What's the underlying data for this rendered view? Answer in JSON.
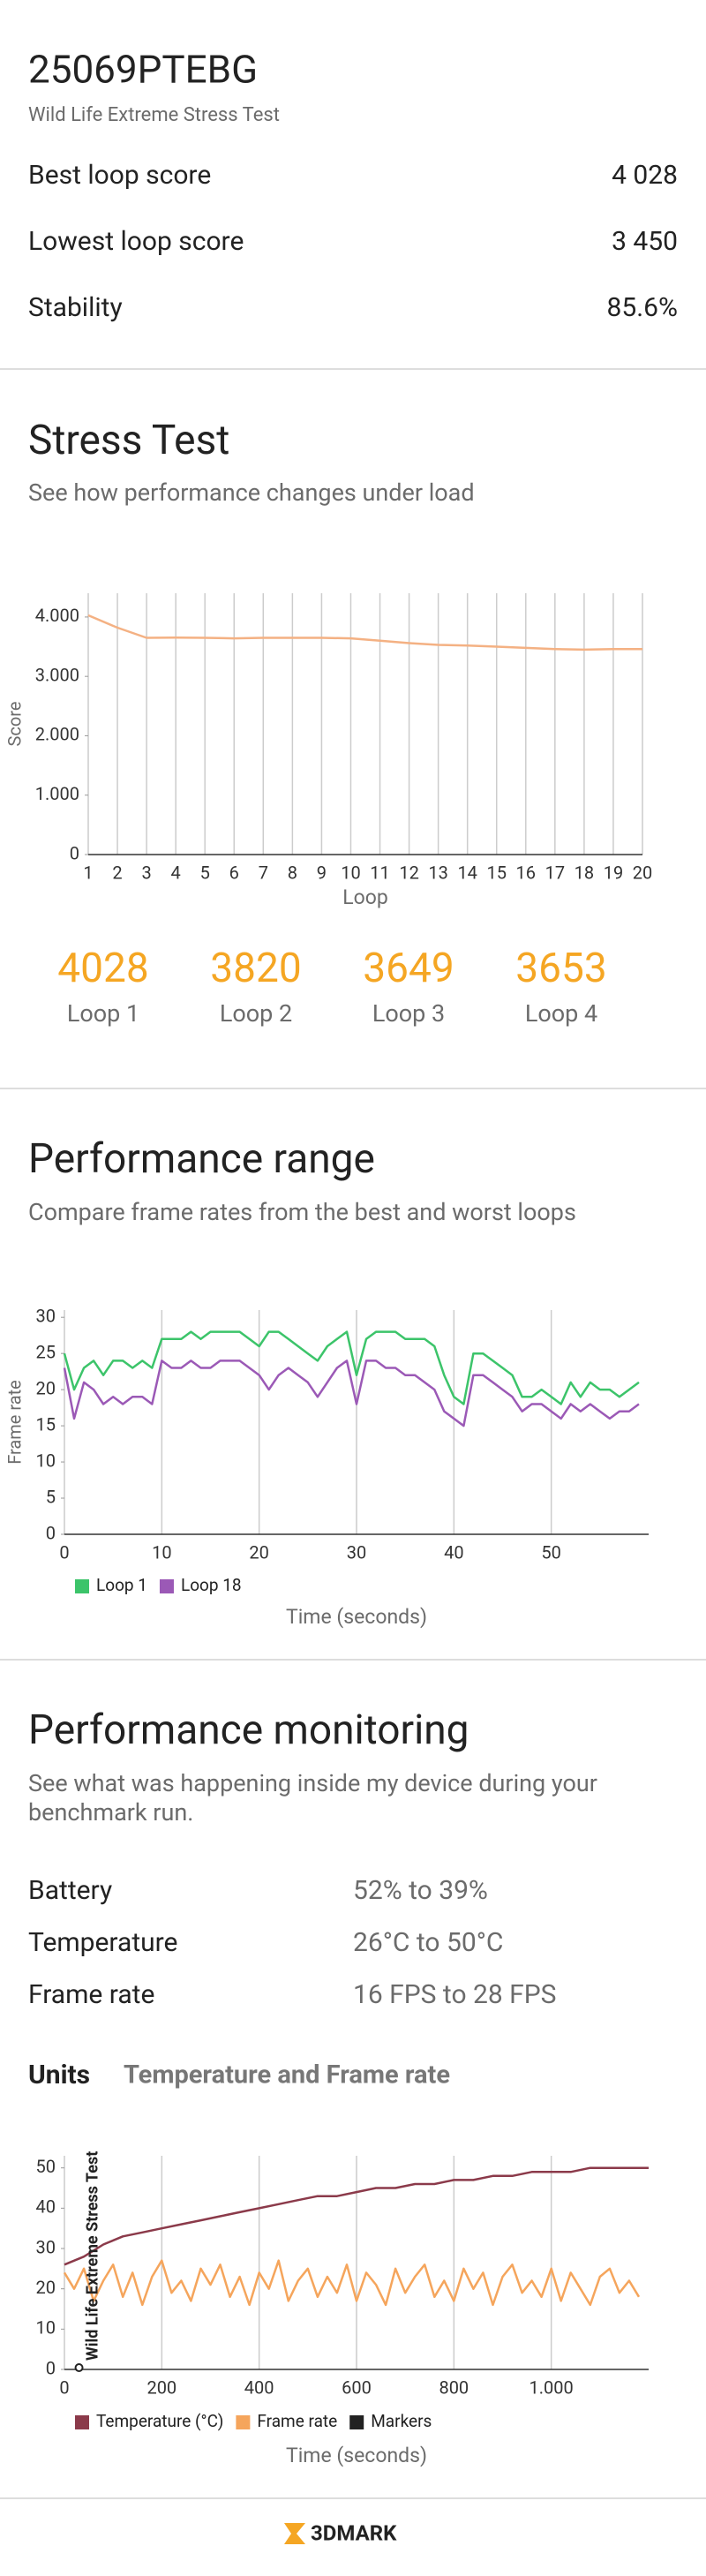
{
  "header": {
    "device": "25069PTEBG",
    "test": "Wild Life Extreme Stress Test",
    "rows": [
      {
        "label": "Best loop score",
        "value": "4 028"
      },
      {
        "label": "Lowest loop score",
        "value": "3 450"
      },
      {
        "label": "Stability",
        "value": "85.6%"
      }
    ]
  },
  "stress_test": {
    "title": "Stress Test",
    "subtitle": "See how performance changes under load",
    "loops": [
      {
        "score": 4028,
        "label": "Loop 1"
      },
      {
        "score": 3820,
        "label": "Loop 2"
      },
      {
        "score": 3649,
        "label": "Loop 3"
      },
      {
        "score": 3653,
        "label": "Loop 4"
      }
    ]
  },
  "performance_range": {
    "title": "Performance range",
    "subtitle": "Compare frame rates from the best and worst loops"
  },
  "performance_monitoring": {
    "title": "Performance monitoring",
    "subtitle": [
      "See what was happening inside my device during your",
      "benchmark run."
    ],
    "rows": [
      {
        "label": "Battery",
        "value": "52% to 39%"
      },
      {
        "label": "Temperature",
        "value": "26°C to 50°C"
      },
      {
        "label": "Frame rate",
        "value": "16 FPS to 28 FPS"
      }
    ],
    "units_label": "Units",
    "units_value": "Temperature and Frame rate"
  },
  "footer": {
    "logo": "3DMARK"
  },
  "chart_data": [
    {
      "type": "line",
      "x": [
        1,
        2,
        3,
        4,
        5,
        6,
        7,
        8,
        9,
        10,
        11,
        12,
        13,
        14,
        15,
        16,
        17,
        18,
        19,
        20
      ],
      "values": [
        4028,
        3820,
        3649,
        3653,
        3650,
        3640,
        3650,
        3650,
        3650,
        3640,
        3600,
        3560,
        3530,
        3520,
        3500,
        3480,
        3460,
        3450,
        3460,
        3460
      ],
      "color": "#f4b183",
      "xlim": [
        1,
        20
      ],
      "xticks": [
        1,
        2,
        3,
        4,
        5,
        6,
        7,
        8,
        9,
        10,
        11,
        12,
        13,
        14,
        15,
        16,
        17,
        18,
        19,
        20
      ],
      "ylim": [
        0,
        4400
      ],
      "yticks": [
        0,
        {
          "value": 1000,
          "label": "1.000"
        },
        {
          "value": 2000,
          "label": "2.000"
        },
        {
          "value": 3000,
          "label": "3.000"
        },
        {
          "value": 4000,
          "label": "4.000"
        }
      ],
      "xlabel": "Loop",
      "ylabel": "Score",
      "grid": "x"
    },
    {
      "type": "line",
      "x": [
        0,
        1,
        2,
        3,
        4,
        5,
        6,
        7,
        8,
        9,
        10,
        11,
        12,
        13,
        14,
        15,
        16,
        17,
        18,
        19,
        20,
        21,
        22,
        23,
        24,
        25,
        26,
        27,
        28,
        29,
        30,
        31,
        32,
        33,
        34,
        35,
        36,
        37,
        38,
        39,
        40,
        41,
        42,
        43,
        44,
        45,
        46,
        47,
        48,
        49,
        50,
        51,
        52,
        53,
        54,
        55,
        56,
        57,
        58,
        59
      ],
      "series": [
        {
          "name": "Loop 1",
          "color": "#3cc46a",
          "values": [
            25,
            20,
            23,
            24,
            22,
            24,
            24,
            23,
            24,
            23,
            27,
            27,
            27,
            28,
            27,
            28,
            28,
            28,
            28,
            27,
            26,
            28,
            28,
            27,
            26,
            25,
            24,
            26,
            27,
            28,
            22,
            27,
            28,
            28,
            28,
            27,
            27,
            27,
            26,
            22,
            19,
            18,
            25,
            25,
            24,
            23,
            22,
            19,
            19,
            20,
            19,
            18,
            21,
            19,
            21,
            20,
            20,
            19,
            20,
            21
          ]
        },
        {
          "name": "Loop 18",
          "color": "#9b59b6",
          "values": [
            23,
            16,
            21,
            20,
            18,
            19,
            18,
            19,
            19,
            18,
            24,
            23,
            23,
            24,
            23,
            23,
            24,
            24,
            24,
            23,
            22,
            20,
            22,
            23,
            22,
            21,
            19,
            21,
            23,
            24,
            18,
            24,
            24,
            23,
            23,
            22,
            22,
            21,
            20,
            17,
            16,
            15,
            22,
            22,
            21,
            20,
            19,
            17,
            18,
            18,
            17,
            16,
            18,
            17,
            18,
            17,
            16,
            17,
            17,
            18
          ]
        }
      ],
      "xlim": [
        0,
        60
      ],
      "xticks": [
        0,
        10,
        20,
        30,
        40,
        50
      ],
      "ylim": [
        0,
        31
      ],
      "yticks": [
        0,
        5,
        10,
        15,
        20,
        25,
        30
      ],
      "xlabel": "Time (seconds)",
      "ylabel": "Frame rate",
      "grid": "x",
      "legend": "bottom-left"
    },
    {
      "type": "line",
      "series": [
        {
          "name": "Temperature (°C)",
          "color": "#8b3a4a",
          "x": [
            0,
            40,
            80,
            120,
            160,
            200,
            240,
            280,
            320,
            360,
            400,
            440,
            480,
            520,
            560,
            600,
            640,
            680,
            720,
            760,
            800,
            840,
            880,
            920,
            960,
            1000,
            1040,
            1080,
            1120,
            1160,
            1200
          ],
          "values": [
            26,
            28,
            31,
            33,
            34,
            35,
            36,
            37,
            38,
            39,
            40,
            41,
            42,
            43,
            43,
            44,
            45,
            45,
            46,
            46,
            47,
            47,
            48,
            48,
            49,
            49,
            49,
            50,
            50,
            50,
            50
          ]
        },
        {
          "name": "Frame rate",
          "color": "#f5a55c",
          "x": [
            0,
            20,
            40,
            60,
            80,
            100,
            120,
            140,
            160,
            180,
            200,
            220,
            240,
            260,
            280,
            300,
            320,
            340,
            360,
            380,
            400,
            420,
            440,
            460,
            480,
            500,
            520,
            540,
            560,
            580,
            600,
            620,
            640,
            660,
            680,
            700,
            720,
            740,
            760,
            780,
            800,
            820,
            840,
            860,
            880,
            900,
            920,
            940,
            960,
            980,
            1000,
            1020,
            1040,
            1060,
            1080,
            1100,
            1120,
            1140,
            1160,
            1180
          ],
          "values": [
            24,
            20,
            25,
            17,
            22,
            26,
            18,
            24,
            16,
            23,
            27,
            19,
            22,
            17,
            25,
            21,
            26,
            18,
            23,
            16,
            24,
            20,
            27,
            17,
            22,
            25,
            18,
            23,
            19,
            26,
            17,
            24,
            21,
            16,
            25,
            19,
            23,
            26,
            18,
            22,
            17,
            25,
            20,
            24,
            16,
            23,
            26,
            19,
            22,
            18,
            25,
            17,
            24,
            20,
            16,
            23,
            25,
            19,
            22,
            18
          ]
        }
      ],
      "markers": {
        "name": "Markers",
        "color": "#222222",
        "x": [
          30
        ],
        "labels": [
          "Wild Life Extreme Stress Test"
        ]
      },
      "xlim": [
        0,
        1200
      ],
      "xticks": [
        0,
        200,
        400,
        600,
        800,
        {
          "value": 1000,
          "label": "1.000"
        }
      ],
      "ylim": [
        0,
        53
      ],
      "yticks": [
        0,
        10,
        20,
        30,
        40,
        50
      ],
      "xlabel": "Time (seconds)",
      "grid": "x",
      "legend": "bottom-left"
    }
  ]
}
